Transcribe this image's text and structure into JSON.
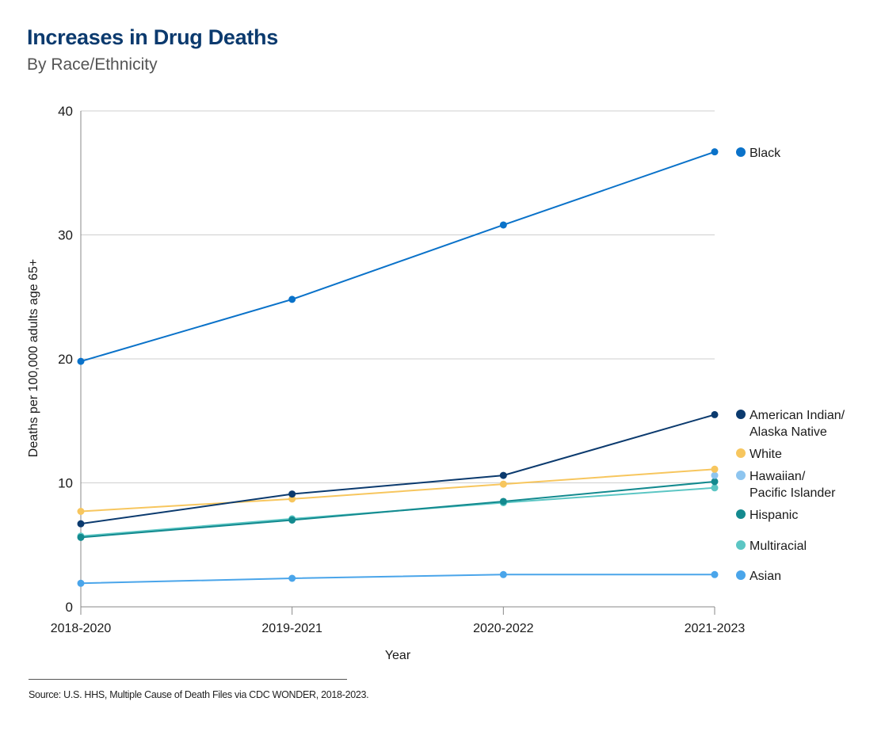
{
  "header": {
    "title": "Increases in Drug Deaths",
    "subtitle": "By Race/Ethnicity"
  },
  "source": "Source: U.S. HHS, Multiple Cause of Death Files via CDC WONDER, 2018-2023.",
  "chart_data": {
    "type": "line",
    "title": "Increases in Drug Deaths",
    "subtitle": "By Race/Ethnicity",
    "xlabel": "Year",
    "ylabel": "Deaths per 100,000 adults age 65+",
    "categories": [
      "2018-2020",
      "2019-2021",
      "2020-2022",
      "2021-2023"
    ],
    "ylim": [
      0,
      40
    ],
    "yticks": [
      0,
      10,
      20,
      30,
      40
    ],
    "grid": true,
    "legend_position": "right",
    "series": [
      {
        "name": "Black",
        "legend": [
          "Black"
        ],
        "color": "#0a72c9",
        "values": [
          19.8,
          24.8,
          30.8,
          36.7
        ]
      },
      {
        "name": "American Indian/Alaska Native",
        "legend": [
          "American Indian/",
          "Alaska Native"
        ],
        "color": "#0b3a6e",
        "values": [
          6.7,
          9.1,
          10.6,
          15.5
        ]
      },
      {
        "name": "White",
        "legend": [
          "White"
        ],
        "color": "#f7c65e",
        "values": [
          7.7,
          8.7,
          9.9,
          11.1
        ]
      },
      {
        "name": "Hawaiian/Pacific Islander",
        "legend": [
          "Hawaiian/",
          "Pacific Islander"
        ],
        "color": "#8ec5ef",
        "values": [
          null,
          null,
          null,
          10.6
        ]
      },
      {
        "name": "Hispanic",
        "legend": [
          "Hispanic"
        ],
        "color": "#138a8f",
        "values": [
          5.6,
          7.0,
          8.5,
          10.1
        ]
      },
      {
        "name": "Multiracial",
        "legend": [
          "Multiracial"
        ],
        "color": "#5cc6c4",
        "values": [
          5.7,
          7.1,
          8.4,
          9.6
        ]
      },
      {
        "name": "Asian",
        "legend": [
          "Asian"
        ],
        "color": "#4aa5ea",
        "values": [
          1.9,
          2.3,
          2.6,
          2.6
        ]
      }
    ]
  }
}
